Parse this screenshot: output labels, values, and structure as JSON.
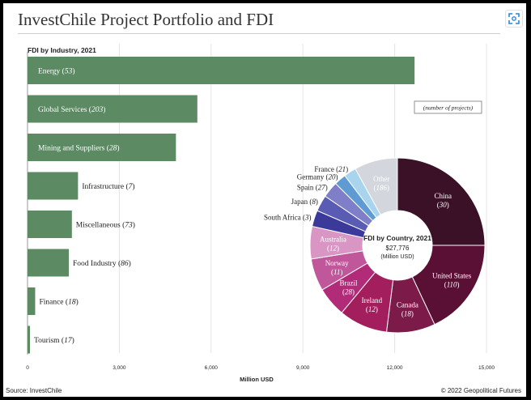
{
  "header": {
    "title": "InvestChile Project Portfolio and FDI",
    "expand_icon": "expand-icon"
  },
  "colors": {
    "bar_fill": "#5b8a63",
    "grid": "#e4e4e4",
    "text": "#222222",
    "label_light": "#ffffff"
  },
  "chart_data": [
    {
      "type": "bar",
      "orientation": "horizontal",
      "title": "FDI by Industry, 2021",
      "xlabel": "Million USD",
      "xlim": [
        0,
        15000
      ],
      "xticks": [
        "0",
        "3,000",
        "6,000",
        "9,000",
        "12,000",
        "15,000"
      ],
      "xtick_values": [
        0,
        3000,
        6000,
        9000,
        12000,
        15000
      ],
      "grid": true,
      "categories": [
        "Energy",
        "Global Services",
        "Mining and Suppliers",
        "Infrastructure",
        "Miscellaneous",
        "Food Industry",
        "Finance",
        "Tourism"
      ],
      "project_counts": [
        "53",
        "203",
        "28",
        "7",
        "73",
        "86",
        "18",
        "17"
      ],
      "values": [
        12650,
        5550,
        4850,
        1650,
        1450,
        1350,
        250,
        80
      ]
    },
    {
      "type": "pie",
      "variant": "donut",
      "title": "FDI by Country, 2021",
      "center_value": "$27,776",
      "center_unit": "(Million USD)",
      "note": "(number of projects)",
      "legend": "none",
      "categories": [
        "China",
        "United States",
        "Canada",
        "Ireland",
        "Brazil",
        "Norway",
        "Australia",
        "South Africa",
        "Japan",
        "Spain",
        "Germany",
        "France",
        "Other"
      ],
      "project_counts": [
        "30",
        "110",
        "18",
        "12",
        "28",
        "11",
        "12",
        "3",
        "8",
        "27",
        "20",
        "21",
        "186"
      ],
      "values": [
        25,
        18,
        9,
        9,
        5.5,
        6,
        6,
        3,
        3,
        3,
        2.2,
        2.3,
        8
      ],
      "colors": [
        "#3a1127",
        "#5a0f35",
        "#7c1a4a",
        "#a31e5c",
        "#b12b78",
        "#c0579a",
        "#d996c5",
        "#3b3a9a",
        "#5a5cb4",
        "#7e7fc8",
        "#5e9bd3",
        "#a9d4ee",
        "#d3d7dd"
      ]
    }
  ],
  "footer": {
    "source": "Source: InvestChile",
    "credit": "© 2022 Geopolitical Futures"
  }
}
